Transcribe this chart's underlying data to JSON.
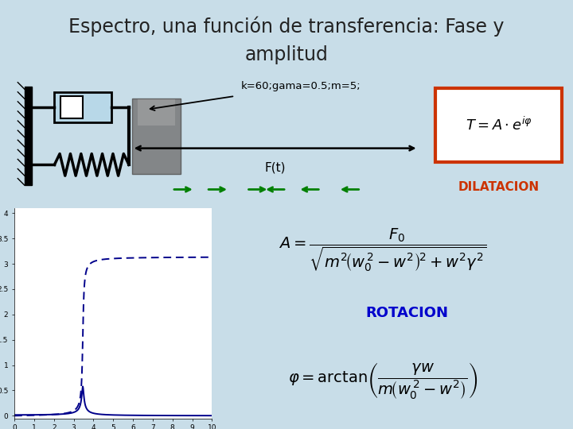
{
  "title_line1": "Espectro, una función de transferencia: Fase y",
  "title_line2": "amplitud",
  "title_bg": "#b8d8e8",
  "main_bg": "#c8dde8",
  "title_fontsize": 17,
  "params_text": "k=60;gama=0.5;m=5;",
  "ft_label": "F(t)",
  "dilatacion_label": "DILATACION",
  "dilatacion_color": "#cc3300",
  "rotacion_label": "ROTACION",
  "rotacion_color": "#0000cc",
  "k": 60,
  "gama": 0.5,
  "m": 5,
  "plot_bg": "#ffffff",
  "curve_color": "#00008b",
  "curve_lw": 1.4,
  "ytick_labels": [
    "0",
    "0.5",
    "1",
    "1.5 -",
    "2",
    "2.5",
    "3",
    "3.5 -",
    "4"
  ],
  "ytick_vals": [
    0,
    0.5,
    1,
    1.5,
    2,
    2.5,
    3,
    3.5,
    4
  ],
  "xtick_vals": [
    0,
    1,
    2,
    3,
    4,
    5,
    6,
    7,
    8,
    9,
    10
  ]
}
